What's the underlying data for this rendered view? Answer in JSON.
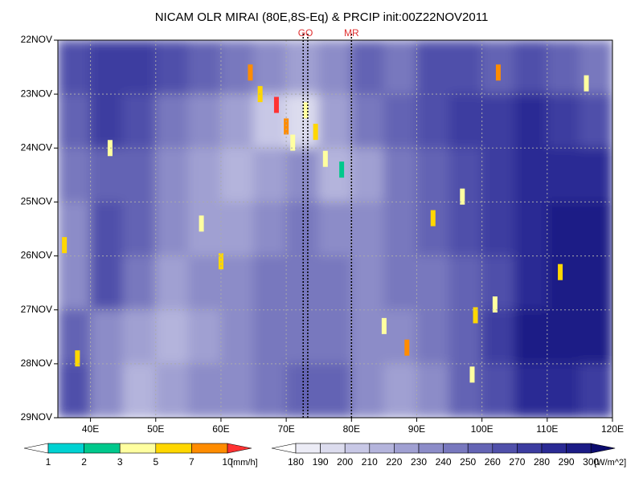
{
  "chart_data": {
    "type": "hovmoller",
    "title": "NICAM OLR MIRAI (80E,8S-Eq) & PRCIP init:00Z22NOV2011",
    "xlim": [
      35,
      120
    ],
    "xticks": [
      {
        "value": 40,
        "label": "40E"
      },
      {
        "value": 50,
        "label": "50E"
      },
      {
        "value": 60,
        "label": "60E"
      },
      {
        "value": 70,
        "label": "70E"
      },
      {
        "value": 80,
        "label": "80E"
      },
      {
        "value": 90,
        "label": "90E"
      },
      {
        "value": 100,
        "label": "100E"
      },
      {
        "value": 110,
        "label": "110E"
      },
      {
        "value": 120,
        "label": "120E"
      }
    ],
    "ylim": [
      22,
      29
    ],
    "yticks": [
      {
        "value": 22,
        "label": "22NOV"
      },
      {
        "value": 23,
        "label": "23NOV"
      },
      {
        "value": 24,
        "label": "24NOV"
      },
      {
        "value": 25,
        "label": "25NOV"
      },
      {
        "value": 26,
        "label": "26NOV"
      },
      {
        "value": 27,
        "label": "27NOV"
      },
      {
        "value": 28,
        "label": "28NOV"
      },
      {
        "value": 29,
        "label": "29NOV"
      }
    ],
    "y_inverted": true,
    "grid": true,
    "olr": {
      "x_edges": [
        35,
        40,
        45,
        50,
        55,
        60,
        65,
        70,
        75,
        80,
        85,
        90,
        95,
        100,
        105,
        110,
        115,
        120
      ],
      "y_edges": [
        22,
        23,
        24,
        25,
        26,
        27,
        28,
        29
      ],
      "values": [
        [
          260,
          270,
          270,
          260,
          250,
          240,
          230,
          220,
          230,
          250,
          240,
          260,
          260,
          250,
          260,
          250,
          240
        ],
        [
          250,
          270,
          260,
          240,
          230,
          220,
          200,
          190,
          220,
          240,
          250,
          260,
          270,
          270,
          280,
          270,
          260
        ],
        [
          240,
          250,
          250,
          230,
          220,
          210,
          220,
          230,
          210,
          220,
          240,
          250,
          260,
          270,
          280,
          280,
          280
        ],
        [
          230,
          260,
          250,
          230,
          220,
          220,
          230,
          240,
          230,
          230,
          240,
          250,
          260,
          270,
          280,
          290,
          290
        ],
        [
          230,
          260,
          240,
          220,
          230,
          230,
          240,
          240,
          240,
          230,
          240,
          240,
          250,
          260,
          280,
          290,
          290
        ],
        [
          250,
          230,
          220,
          210,
          220,
          230,
          240,
          240,
          240,
          230,
          230,
          240,
          250,
          270,
          290,
          290,
          290
        ],
        [
          260,
          230,
          210,
          220,
          230,
          230,
          240,
          250,
          250,
          230,
          220,
          230,
          250,
          260,
          280,
          280,
          270
        ]
      ],
      "levels": [
        180,
        190,
        200,
        210,
        220,
        230,
        240,
        250,
        260,
        270,
        280,
        290,
        300
      ],
      "colors": [
        "#ffffff",
        "#ececf6",
        "#dcdcee",
        "#c8c8e6",
        "#b4b4dc",
        "#a0a0d2",
        "#8c8cc8",
        "#7878be",
        "#6464b4",
        "#5050aa",
        "#3c3ca0",
        "#2a2a94",
        "#1c1c86",
        "#0c0c6e"
      ],
      "unit": "[W/m^2]"
    },
    "precip": {
      "x": [
        64.5,
        66,
        68.5,
        70,
        71,
        73,
        74.5,
        76,
        78.5,
        43,
        36,
        60,
        88.5,
        92.5,
        97,
        99,
        85,
        98.5,
        102.5,
        112,
        116,
        38,
        57,
        102
      ],
      "y": [
        22.6,
        23.0,
        23.2,
        23.6,
        23.9,
        23.3,
        23.7,
        24.2,
        24.4,
        24.0,
        25.8,
        26.1,
        27.7,
        25.3,
        24.9,
        27.1,
        27.3,
        28.2,
        22.6,
        26.3,
        22.8,
        27.9,
        25.4,
        26.9
      ],
      "values": [
        8,
        6,
        11,
        7,
        4,
        3,
        6,
        3,
        2,
        3,
        5,
        6,
        8,
        6,
        4,
        5,
        4,
        3,
        7,
        5,
        4,
        6,
        3,
        4
      ],
      "levels": [
        1,
        2,
        3,
        5,
        7,
        10
      ],
      "colors": [
        "#ffffff",
        "#00d2d2",
        "#00c88c",
        "#ffffa0",
        "#ffd700",
        "#ff8c00",
        "#ff3232"
      ],
      "unit": "[mm/h]"
    },
    "markers": [
      {
        "label": "GO",
        "x": [
          72.6,
          73.3
        ]
      },
      {
        "label": "MR",
        "x": [
          80
        ]
      }
    ]
  }
}
